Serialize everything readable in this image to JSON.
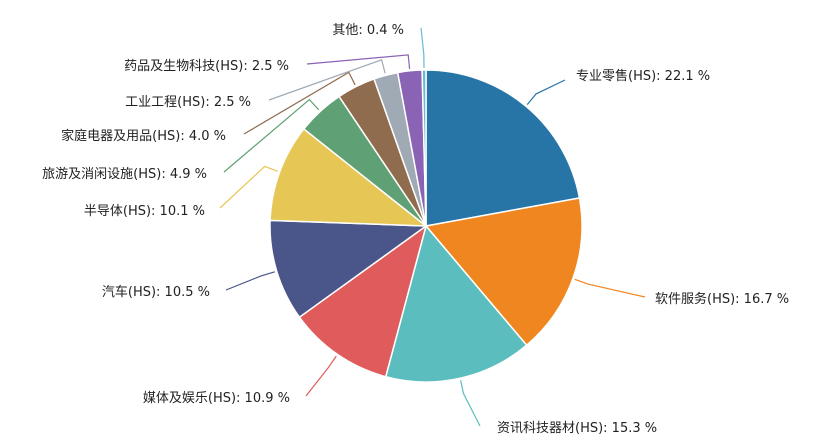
{
  "chart_data": {
    "type": "pie",
    "title": "",
    "unit": "%",
    "slices": [
      {
        "label": "专业零售(HS)",
        "value": 22.1,
        "display": "专业零售(HS): 22.1 %",
        "color": "#2775a6"
      },
      {
        "label": "软件服务(HS)",
        "value": 16.7,
        "display": "软件服务(HS): 16.7 %",
        "color": "#f0861f"
      },
      {
        "label": "资讯科技器材(HS)",
        "value": 15.3,
        "display": "资讯科技器材(HS): 15.3 %",
        "color": "#5cbdbf"
      },
      {
        "label": "媒体及娱乐(HS)",
        "value": 10.9,
        "display": "媒体及娱乐(HS): 10.9 %",
        "color": "#e05c5c"
      },
      {
        "label": "汽车(HS)",
        "value": 10.5,
        "display": "汽车(HS): 10.5 %",
        "color": "#4a5589"
      },
      {
        "label": "半导体(HS)",
        "value": 10.1,
        "display": "半导体(HS): 10.1 %",
        "color": "#e6c654"
      },
      {
        "label": "旅游及消闲设施(HS)",
        "value": 4.9,
        "display": "旅游及消闲设施(HS): 4.9 %",
        "color": "#5fa074"
      },
      {
        "label": "家庭电器及用品(HS)",
        "value": 4.0,
        "display": "家庭电器及用品(HS): 4.0 %",
        "color": "#8f6c4e"
      },
      {
        "label": "工业工程(HS)",
        "value": 2.5,
        "display": "工业工程(HS): 2.5 %",
        "color": "#9faab4"
      },
      {
        "label": "药品及生物科技(HS)",
        "value": 2.5,
        "display": "药品及生物科技(HS): 2.5 %",
        "color": "#8b63b4"
      },
      {
        "label": "其他",
        "value": 0.4,
        "display": "其他: 0.4 %",
        "color": "#6ab7d6"
      }
    ]
  }
}
